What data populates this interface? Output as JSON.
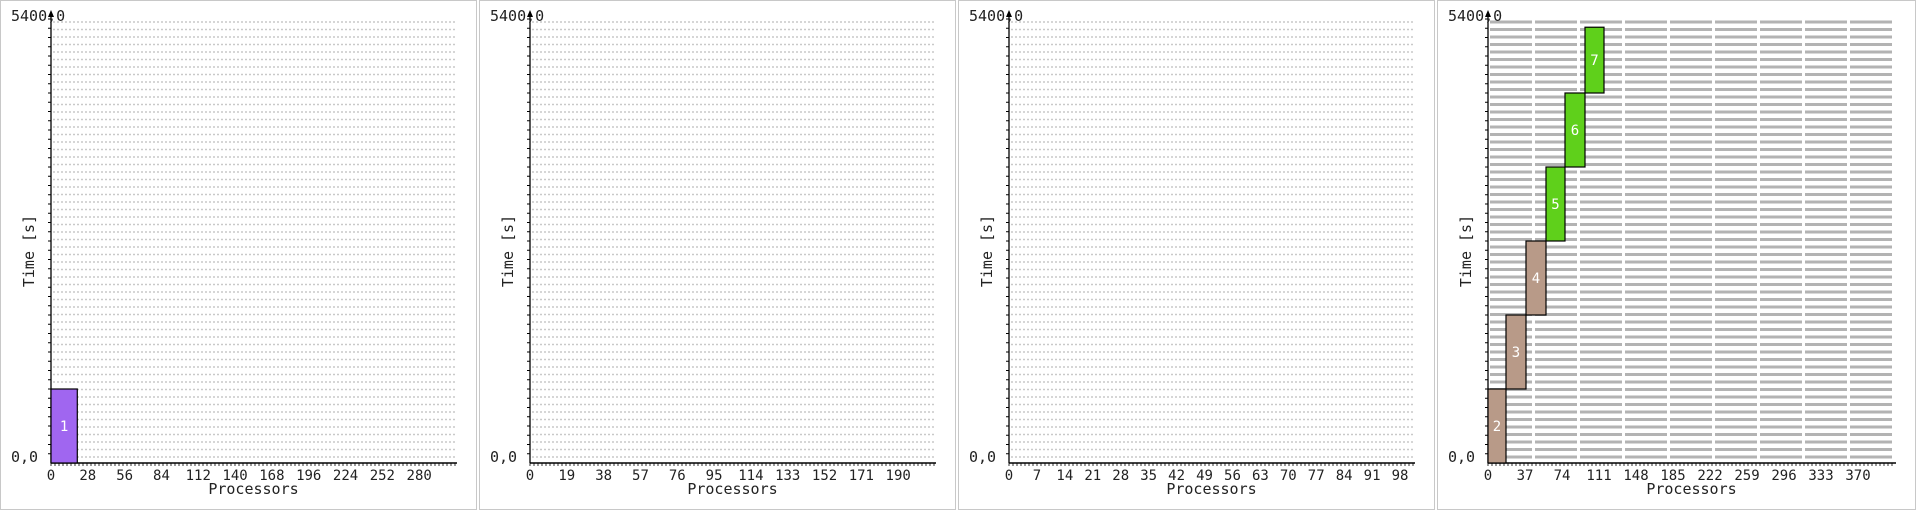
{
  "chart_data": [
    {
      "type": "bar",
      "ylabel": "Time [s]",
      "xlabel": "Processors",
      "ymax_label": "5400,0",
      "origin_label": "0,0",
      "ylim": [
        0,
        5400
      ],
      "xlim": [
        0,
        308
      ],
      "xticks": [
        "0",
        "28",
        "56",
        "84",
        "112",
        "140",
        "168",
        "196",
        "224",
        "252",
        "280"
      ],
      "grid_style": "dotted",
      "jobs": [
        {
          "label": "1",
          "proc_start": 0,
          "proc_end": 20,
          "t_start": 0,
          "t_end": 900,
          "color": "#a066f0"
        }
      ]
    },
    {
      "type": "bar",
      "ylabel": "Time [s]",
      "xlabel": "Processors",
      "ymax_label": "5400,0",
      "origin_label": "0,0",
      "ylim": [
        0,
        5400
      ],
      "xlim": [
        0,
        209
      ],
      "xticks": [
        "0",
        "19",
        "38",
        "57",
        "76",
        "95",
        "114",
        "133",
        "152",
        "171",
        "190"
      ],
      "grid_style": "dotted",
      "jobs": []
    },
    {
      "type": "bar",
      "ylabel": "Time [s]",
      "xlabel": "Processors",
      "ymax_label": "5400,0",
      "origin_label": "0,0",
      "ylim": [
        0,
        5400
      ],
      "xlim": [
        0,
        101.5
      ],
      "xticks": [
        "0",
        "7",
        "14",
        "21",
        "28",
        "35",
        "42",
        "49",
        "56",
        "63",
        "70",
        "77",
        "84",
        "91",
        "98"
      ],
      "grid_style": "dotted",
      "jobs": []
    },
    {
      "type": "bar",
      "ylabel": "Time [s]",
      "xlabel": "Processors",
      "ymax_label": "5400,0",
      "origin_label": "0,0",
      "ylim": [
        0,
        5400
      ],
      "xlim": [
        0,
        407
      ],
      "xticks": [
        "0",
        "37",
        "74",
        "111",
        "148",
        "185",
        "222",
        "259",
        "296",
        "333",
        "370"
      ],
      "grid_style": "dashed",
      "jobs": [
        {
          "label": "2",
          "proc_start": 0,
          "proc_end": 18,
          "t_start": 0,
          "t_end": 900,
          "color": "#b89a88"
        },
        {
          "label": "3",
          "proc_start": 18,
          "proc_end": 38,
          "t_start": 900,
          "t_end": 1800,
          "color": "#b89a88"
        },
        {
          "label": "4",
          "proc_start": 38,
          "proc_end": 58,
          "t_start": 1800,
          "t_end": 2700,
          "color": "#b89a88"
        },
        {
          "label": "5",
          "proc_start": 58,
          "proc_end": 77,
          "t_start": 2700,
          "t_end": 3600,
          "color": "#5fd01b"
        },
        {
          "label": "6",
          "proc_start": 77,
          "proc_end": 97,
          "t_start": 3600,
          "t_end": 4500,
          "color": "#5fd01b"
        },
        {
          "label": "7",
          "proc_start": 97,
          "proc_end": 116,
          "t_start": 4500,
          "t_end": 5300,
          "color": "#5fd01b"
        }
      ]
    }
  ]
}
